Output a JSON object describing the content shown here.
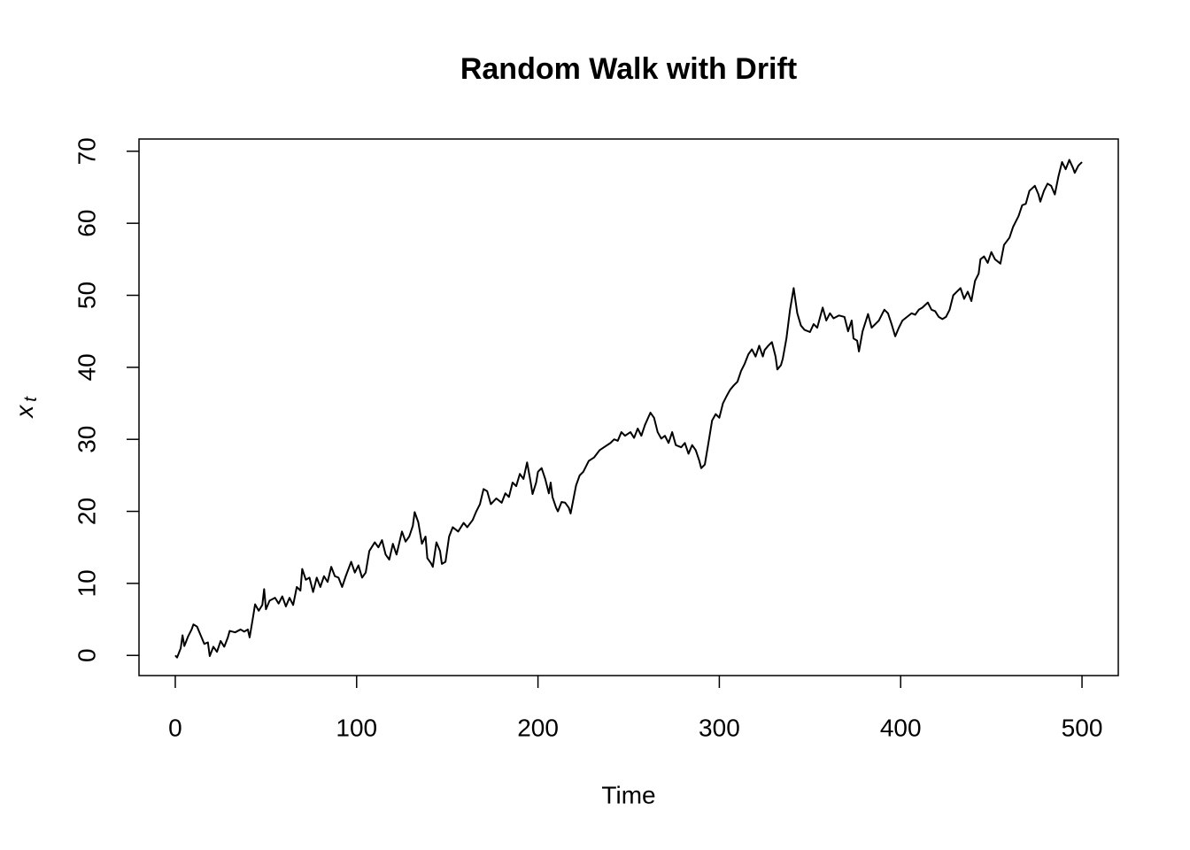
{
  "chart_data": {
    "type": "line",
    "title": "Random Walk with Drift",
    "x_label": "Time",
    "y_label": "x",
    "y_label_subscript": "t",
    "color": "#000000",
    "grid": false,
    "xlim": [
      -20,
      520
    ],
    "ylim": [
      -2.8,
      71.7
    ],
    "xticks": [
      0,
      100,
      200,
      300,
      400,
      500
    ],
    "yticks": [
      0,
      10,
      20,
      30,
      40,
      50,
      60,
      70
    ],
    "x": [
      0,
      1,
      3,
      4,
      5,
      7,
      9,
      10,
      12,
      14,
      16,
      18,
      19,
      21,
      23,
      25,
      27,
      29,
      30,
      33,
      36,
      38,
      40,
      41,
      43,
      44,
      46,
      48,
      49,
      50,
      52,
      55,
      57,
      59,
      61,
      63,
      65,
      67,
      69,
      70,
      72,
      74,
      76,
      78,
      80,
      82,
      84,
      86,
      88,
      90,
      92,
      94,
      97,
      99,
      101,
      103,
      105,
      107,
      110,
      112,
      114,
      116,
      118,
      120,
      122,
      125,
      127,
      129,
      131,
      132,
      134,
      136,
      138,
      139,
      141,
      142,
      144,
      146,
      147,
      149,
      151,
      153,
      156,
      159,
      161,
      164,
      166,
      168,
      170,
      172,
      174,
      177,
      180,
      182,
      184,
      186,
      188,
      190,
      192,
      194,
      196,
      197,
      199,
      200,
      202,
      204,
      206,
      207,
      208,
      210,
      211,
      213,
      215,
      217,
      218,
      219,
      221,
      223,
      225,
      228,
      231,
      234,
      237,
      240,
      242,
      244,
      246,
      248,
      251,
      253,
      255,
      257,
      259,
      262,
      264,
      266,
      268,
      270,
      272,
      274,
      276,
      279,
      281,
      283,
      285,
      287,
      289,
      290,
      292,
      294,
      296,
      298,
      300,
      302,
      304,
      306,
      308,
      310,
      312,
      314,
      316,
      318,
      320,
      322,
      324,
      325,
      327,
      329,
      331,
      332,
      334,
      335,
      337,
      339,
      341,
      343,
      345,
      347,
      350,
      352,
      354,
      357,
      359,
      361,
      363,
      366,
      369,
      371,
      373,
      374,
      376,
      377,
      379,
      382,
      384,
      386,
      388,
      390,
      391,
      393,
      395,
      397,
      399,
      401,
      404,
      406,
      408,
      410,
      412,
      415,
      417,
      419,
      421,
      423,
      425,
      427,
      429,
      431,
      433,
      435,
      437,
      439,
      441,
      443,
      444,
      446,
      448,
      450,
      452,
      455,
      457,
      460,
      462,
      465,
      467,
      469,
      471,
      474,
      476,
      477,
      479,
      481,
      483,
      485,
      487,
      489,
      491,
      493,
      495,
      496,
      498,
      500
    ],
    "values": [
      0,
      -0.3,
      1,
      2.8,
      1.3,
      2.6,
      3.6,
      4.3,
      4.0,
      2.8,
      1.6,
      1.8,
      -0.1,
      1.2,
      0.5,
      2,
      1.2,
      2.5,
      3.4,
      3.2,
      3.6,
      3.3,
      3.6,
      2.5,
      5.5,
      7.1,
      6.2,
      7.0,
      9.2,
      6.4,
      7.6,
      8,
      7.2,
      8.2,
      6.8,
      8,
      7,
      9.5,
      9,
      12,
      10.5,
      10.8,
      8.8,
      10.8,
      9.5,
      11,
      10.2,
      12.3,
      11,
      10.8,
      9.5,
      11,
      13,
      11.5,
      12.5,
      10.8,
      11.5,
      14.5,
      15.7,
      15,
      16,
      14,
      13.3,
      15.5,
      14,
      17.2,
      15.8,
      16.5,
      18,
      19.9,
      18.5,
      15.5,
      16.5,
      13.5,
      12.8,
      12.3,
      15.7,
      14.5,
      12.7,
      13,
      16.5,
      17.8,
      17.2,
      18.4,
      17.8,
      18.8,
      20,
      21,
      23.1,
      22.8,
      21,
      21.8,
      21.2,
      22.5,
      22,
      24,
      23.5,
      25.2,
      24.5,
      26.8,
      24,
      22.4,
      24,
      25.5,
      26,
      24.5,
      22.5,
      24,
      22,
      20.5,
      20,
      21.3,
      21.2,
      20.5,
      19.7,
      21,
      23.6,
      25,
      25.5,
      27,
      27.5,
      28.5,
      29,
      29.5,
      30,
      29.8,
      31,
      30.5,
      31,
      30.2,
      31.5,
      30.5,
      32,
      33.7,
      33,
      31,
      30.1,
      30.5,
      29.5,
      31,
      29.2,
      28.9,
      29.5,
      28,
      29.2,
      28.5,
      27,
      26,
      26.5,
      29.5,
      32.6,
      33.5,
      33,
      35,
      36,
      36.9,
      37.5,
      38,
      39.5,
      40.5,
      41.8,
      42.5,
      41.5,
      43,
      41.5,
      42.4,
      43,
      43.5,
      41.5,
      39.7,
      40.3,
      41.2,
      44,
      48,
      51,
      47.5,
      45.8,
      45.2,
      44.9,
      46,
      45.5,
      48.3,
      46.5,
      47.5,
      46.8,
      47.2,
      47,
      45,
      46.5,
      44,
      43.7,
      42.2,
      45,
      47.4,
      45.5,
      46,
      46.5,
      47.5,
      48,
      47.5,
      46,
      44.3,
      45.5,
      46.5,
      47.1,
      47.5,
      47.3,
      48,
      48.3,
      49,
      48,
      47.8,
      47,
      46.7,
      47,
      48,
      50,
      50.5,
      51,
      49.5,
      50.5,
      49.2,
      52,
      53,
      55,
      55.4,
      54.5,
      56,
      55,
      54.4,
      57,
      58,
      59.5,
      61,
      62.5,
      62.7,
      64.5,
      65.2,
      64,
      63,
      64.5,
      65.5,
      65.2,
      64,
      66.5,
      68.5,
      67.5,
      68.8,
      67.7,
      67,
      68,
      68.5
    ]
  }
}
